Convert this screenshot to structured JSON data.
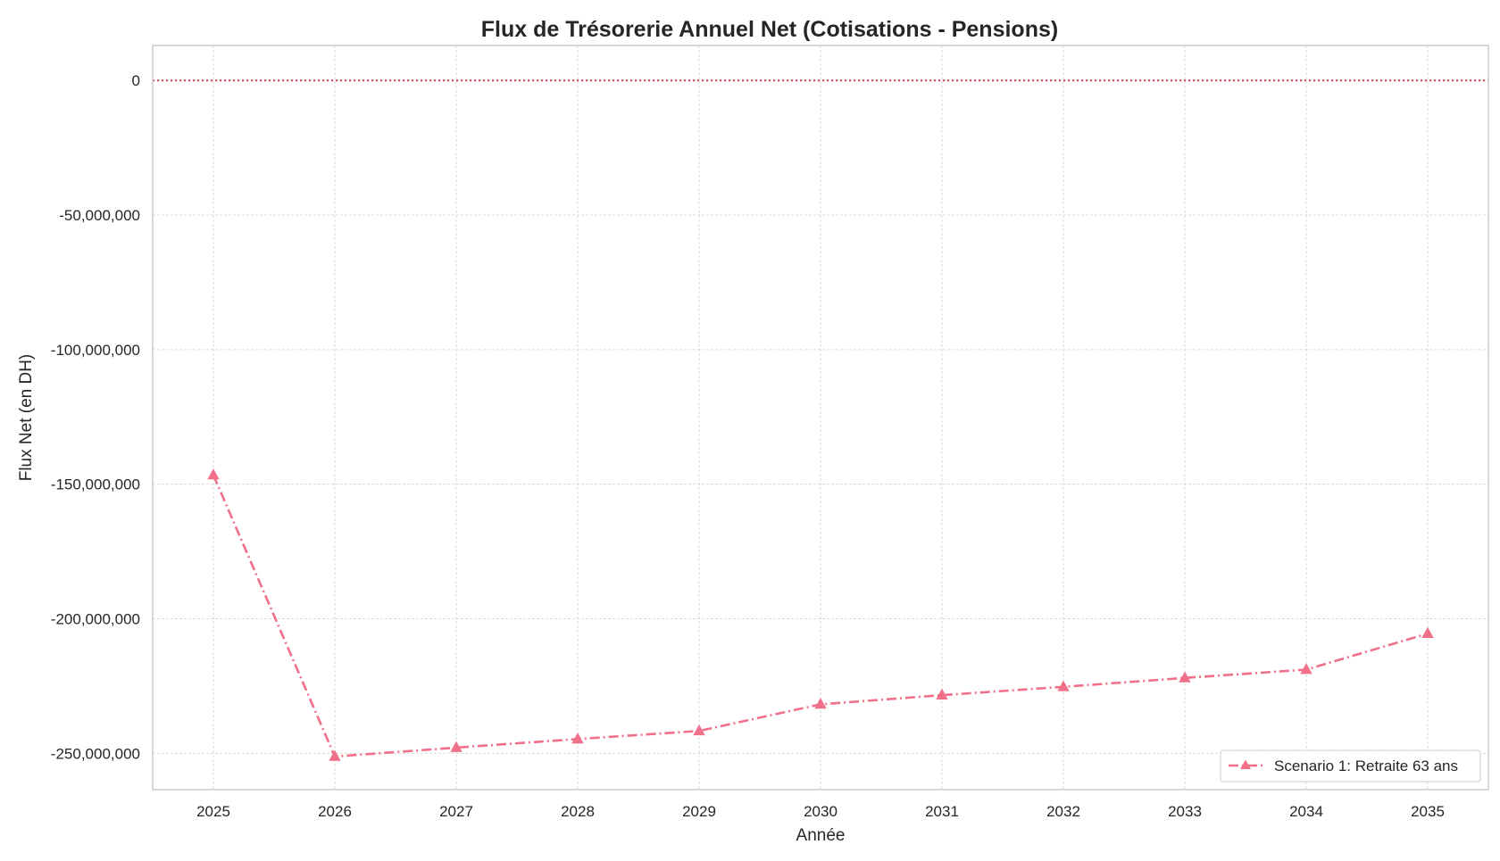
{
  "chart_data": {
    "type": "line",
    "title": "Flux de Trésorerie Annuel Net (Cotisations - Pensions)",
    "xlabel": "Année",
    "ylabel": "Flux Net (en DH)",
    "x": [
      2025,
      2026,
      2027,
      2028,
      2029,
      2030,
      2031,
      2032,
      2033,
      2034,
      2035
    ],
    "x_tick_labels": [
      "2025",
      "2026",
      "2027",
      "2028",
      "2029",
      "2030",
      "2031",
      "2032",
      "2033",
      "2034",
      "2035"
    ],
    "y_ticks": [
      0,
      -50000000,
      -100000000,
      -150000000,
      -200000000,
      -250000000
    ],
    "y_tick_labels": [
      "0",
      "-50,000,000",
      "-100,000,000",
      "-150,000,000",
      "-200,000,000",
      "-250,000,000"
    ],
    "xlim": [
      2024.5,
      2035.5
    ],
    "ylim": [
      -263500000,
      13000000
    ],
    "grid": true,
    "reference_line": {
      "y": 0,
      "style": "dotted",
      "color": "#d8475c"
    },
    "legend_position": "lower-right",
    "series": [
      {
        "name": "Scenario 1: Retraite 63 ans",
        "color": "#f0708a",
        "line_style": "dash-dot",
        "marker": "triangle",
        "values": [
          -146600000,
          -251200000,
          -247900000,
          -244700000,
          -241700000,
          -231800000,
          -228400000,
          -225300000,
          -222000000,
          -218900000,
          -205500000
        ]
      }
    ]
  }
}
